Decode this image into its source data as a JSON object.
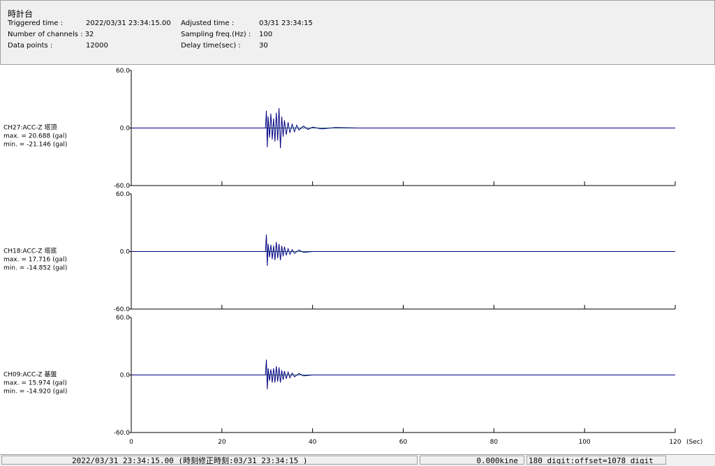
{
  "header": {
    "title": "時計台",
    "rows": [
      [
        "Triggered time :",
        "2022/03/31 23:34:15.00",
        "Adjusted time :",
        "03/31 23:34:15"
      ],
      [
        "Number of channels : 32",
        "",
        "Sampling freq.(Hz) :",
        "100"
      ],
      [
        "Data points :",
        "12000",
        "Delay time(sec) :",
        "30"
      ]
    ]
  },
  "chart_data": {
    "type": "line",
    "xlim": [
      0,
      120
    ],
    "xticks": [
      0,
      20,
      40,
      60,
      80,
      100,
      120
    ],
    "x_unit": "(Sec)",
    "ylim": [
      -60,
      60
    ],
    "yticks": [
      {
        "value": 60,
        "label": "60.0"
      },
      {
        "value": 0,
        "label": "0.0"
      },
      {
        "value": -60,
        "label": "-60.0"
      }
    ],
    "panels": [
      {
        "name": "CH27:ACC-Z 塔頂",
        "max": "max. = 20.688 (gal)",
        "min": "min. = -21.146 (gal)",
        "color": "#000080",
        "x": [
          0,
          29.6,
          29.8,
          30.0,
          30.2,
          30.5,
          30.8,
          31.1,
          31.4,
          31.7,
          32.0,
          32.3,
          32.6,
          32.9,
          33.2,
          33.5,
          33.8,
          34.2,
          34.6,
          35.0,
          35.5,
          36,
          36.5,
          37,
          38,
          39,
          40,
          42,
          45,
          50,
          120
        ],
        "values": [
          0,
          0,
          18,
          -20,
          12,
          -10,
          15,
          -12,
          10,
          -14,
          16,
          -13,
          20.7,
          -21.1,
          12,
          -9,
          8,
          -7,
          6,
          -5,
          4,
          -4,
          3,
          -2,
          2,
          -1.5,
          1,
          -1,
          0.5,
          0,
          0
        ]
      },
      {
        "name": "CH18:ACC-Z 塔底",
        "max": "max. = 17.716 (gal)",
        "min": "min. = -14.852 (gal)",
        "color": "#000080",
        "x": [
          0,
          29.6,
          29.8,
          30.0,
          30.2,
          30.5,
          30.8,
          31.1,
          31.4,
          31.7,
          32.0,
          32.3,
          32.6,
          32.9,
          33.2,
          33.5,
          33.8,
          34.2,
          34.6,
          35.0,
          35.5,
          36,
          37,
          38,
          40,
          120
        ],
        "values": [
          0,
          0,
          17.7,
          -14.9,
          8,
          -6,
          7,
          -8,
          6,
          -9,
          10,
          -7,
          8,
          -9,
          6,
          -5,
          5,
          -4,
          3,
          -3,
          2,
          -2,
          1.5,
          -1,
          0,
          0
        ]
      },
      {
        "name": "CH09:ACC-Z 基盤",
        "max": "max. = 15.974 (gal)",
        "min": "min. = -14.920 (gal)",
        "color": "#000080",
        "x": [
          0,
          29.6,
          29.8,
          30.0,
          30.2,
          30.5,
          30.8,
          31.1,
          31.4,
          31.7,
          32.0,
          32.3,
          32.6,
          32.9,
          33.2,
          33.5,
          33.8,
          34.2,
          34.6,
          35.0,
          35.5,
          36,
          37,
          38,
          40,
          120
        ],
        "values": [
          0,
          0,
          16.0,
          -14.9,
          7,
          -6,
          6,
          -8,
          7,
          -8,
          9,
          -7,
          8,
          -8,
          5,
          -5,
          4,
          -4,
          3,
          -3,
          2,
          -2,
          1.5,
          -1,
          0,
          0
        ]
      }
    ]
  },
  "status_bar": {
    "time": "2022/03/31 23:34:15.00  (時刻修正時刻:03/31 23:34:15  )",
    "velocity": "0.000kine",
    "digit": "180 digit:offset=1078 digit"
  }
}
